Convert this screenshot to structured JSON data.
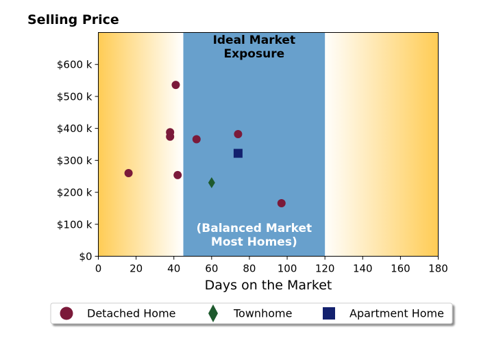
{
  "chart_data": {
    "type": "scatter",
    "title": "Selling Price",
    "xlabel": "Days on the Market",
    "ylabel": "",
    "xlim": [
      0,
      180
    ],
    "ylim": [
      0,
      700000
    ],
    "x_ticks": [
      0,
      20,
      40,
      60,
      80,
      100,
      120,
      140,
      160,
      180
    ],
    "x_tick_labels": [
      "0",
      "20",
      "40",
      "60",
      "80",
      "100",
      "120",
      "140",
      "160",
      "180"
    ],
    "y_ticks": [
      0,
      100000,
      200000,
      300000,
      400000,
      500000,
      600000
    ],
    "y_tick_labels": [
      "$0",
      "$100 k",
      "$200 k",
      "$300 k",
      "$400 k",
      "$500 k",
      "$600 k"
    ],
    "grid": false,
    "legend_position": "bottom",
    "balanced_band": {
      "x_range": [
        45,
        120
      ],
      "color": "#68a0cc",
      "label_top": "Ideal Market\nExposure",
      "label_bottom": "(Balanced Market\nMost Homes)"
    },
    "background_gradient_color": "#ffcc55",
    "series": [
      {
        "name": "Detached Home",
        "marker": "circle",
        "color": "#7b1a3a",
        "points": [
          [
            16,
            260000
          ],
          [
            38,
            388000
          ],
          [
            38,
            374000
          ],
          [
            41,
            536000
          ],
          [
            42,
            254000
          ],
          [
            52,
            366000
          ],
          [
            74,
            382000
          ],
          [
            97,
            166000
          ]
        ]
      },
      {
        "name": "Townhome",
        "marker": "diamond",
        "color": "#1e5a2e",
        "points": [
          [
            60,
            230000
          ]
        ]
      },
      {
        "name": "Apartment Home",
        "marker": "square",
        "color": "#13216e",
        "points": [
          [
            74,
            322000
          ]
        ]
      }
    ]
  }
}
